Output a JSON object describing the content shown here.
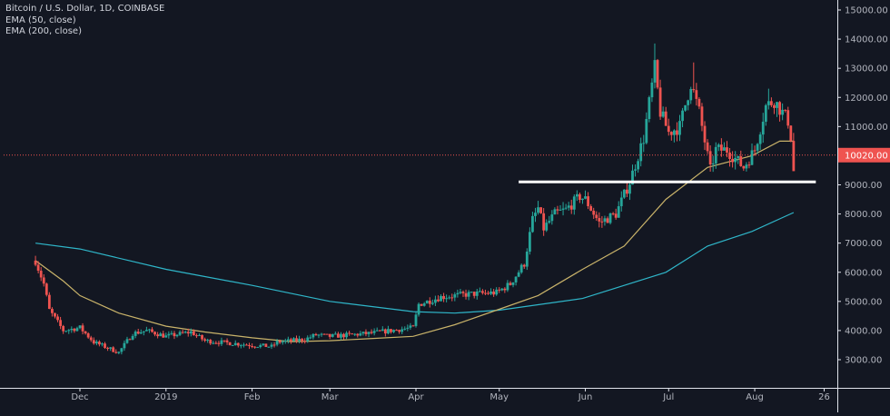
{
  "legend": {
    "title": "Bitcoin / U.S. Dollar, 1D, COINBASE",
    "ema50": "EMA (50, close)",
    "ema200": "EMA (200, close)"
  },
  "colors": {
    "background": "#131722",
    "up": "#26a69a",
    "down": "#ef5350",
    "ema50": "#c9b36a",
    "ema200": "#2fb6c9",
    "price_line": "#ef5350",
    "support_line": "#ffffff",
    "axis_text": "#b2b5be",
    "border": "#e0e3eb"
  },
  "chart_data": {
    "type": "candlestick",
    "title": "Bitcoin / U.S. Dollar, 1D, COINBASE",
    "xlabel": "",
    "ylabel": "",
    "ylim": [
      2300,
      15000
    ],
    "y_ticks": [
      "15000.00",
      "14000.00",
      "13000.00",
      "12000.00",
      "11000.00",
      "10000.00",
      "9000.00",
      "8000.00",
      "7000.00",
      "6000.00",
      "5000.00",
      "4000.00",
      "3000.00"
    ],
    "x_ticks": [
      "Dec",
      "2019",
      "Feb",
      "Mar",
      "Apr",
      "May",
      "Jun",
      "Jul",
      "Aug",
      "26"
    ],
    "current_price": "10020.00",
    "price_anchors": [
      [
        "2018-11-15",
        6400
      ],
      [
        "2018-11-18",
        5600
      ],
      [
        "2018-11-20",
        4700
      ],
      [
        "2018-11-25",
        4000
      ],
      [
        "2018-12-01",
        4100
      ],
      [
        "2018-12-06",
        3600
      ],
      [
        "2018-12-15",
        3250
      ],
      [
        "2018-12-20",
        3900
      ],
      [
        "2018-12-25",
        4000
      ],
      [
        "2019-01-01",
        3800
      ],
      [
        "2019-01-10",
        3950
      ],
      [
        "2019-01-15",
        3650
      ],
      [
        "2019-02-01",
        3500
      ],
      [
        "2019-02-08",
        3450
      ],
      [
        "2019-02-10",
        3600
      ],
      [
        "2019-02-20",
        3700
      ],
      [
        "2019-02-24",
        3850
      ],
      [
        "2019-03-01",
        3800
      ],
      [
        "2019-03-15",
        3900
      ],
      [
        "2019-03-31",
        4100
      ],
      [
        "2019-04-02",
        4900
      ],
      [
        "2019-04-10",
        5150
      ],
      [
        "2019-04-20",
        5250
      ],
      [
        "2019-04-30",
        5300
      ],
      [
        "2019-05-05",
        5600
      ],
      [
        "2019-05-10",
        6300
      ],
      [
        "2019-05-13",
        7800
      ],
      [
        "2019-05-15",
        8200
      ],
      [
        "2019-05-17",
        7500
      ],
      [
        "2019-05-21",
        8000
      ],
      [
        "2019-05-25",
        8150
      ],
      [
        "2019-05-30",
        8600
      ],
      [
        "2019-06-01",
        8500
      ],
      [
        "2019-06-06",
        7700
      ],
      [
        "2019-06-12",
        8000
      ],
      [
        "2019-06-17",
        9100
      ],
      [
        "2019-06-22",
        10600
      ],
      [
        "2019-06-26",
        13000
      ],
      [
        "2019-06-28",
        11500
      ],
      [
        "2019-07-01",
        10800
      ],
      [
        "2019-07-05",
        11000
      ],
      [
        "2019-07-09",
        12500
      ],
      [
        "2019-07-12",
        11500
      ],
      [
        "2019-07-16",
        9500
      ],
      [
        "2019-07-18",
        10200
      ],
      [
        "2019-07-22",
        10200
      ],
      [
        "2019-07-28",
        9600
      ],
      [
        "2019-08-01",
        10200
      ],
      [
        "2019-08-05",
        11700
      ],
      [
        "2019-08-08",
        11900
      ],
      [
        "2019-08-13",
        11200
      ],
      [
        "2019-08-15",
        10100
      ]
    ],
    "ema50_points": [
      [
        "2018-11-15",
        6400
      ],
      [
        "2018-11-25",
        5700
      ],
      [
        "2018-12-01",
        5200
      ],
      [
        "2018-12-15",
        4600
      ],
      [
        "2019-01-01",
        4150
      ],
      [
        "2019-01-15",
        3950
      ],
      [
        "2019-02-01",
        3750
      ],
      [
        "2019-02-15",
        3620
      ],
      [
        "2019-03-01",
        3650
      ],
      [
        "2019-03-15",
        3720
      ],
      [
        "2019-03-31",
        3800
      ],
      [
        "2019-04-15",
        4200
      ],
      [
        "2019-04-30",
        4700
      ],
      [
        "2019-05-15",
        5200
      ],
      [
        "2019-05-31",
        6100
      ],
      [
        "2019-06-15",
        6900
      ],
      [
        "2019-06-30",
        8500
      ],
      [
        "2019-07-15",
        9600
      ],
      [
        "2019-07-31",
        10000
      ],
      [
        "2019-08-10",
        10500
      ],
      [
        "2019-08-15",
        10500
      ]
    ],
    "ema200_points": [
      [
        "2018-11-15",
        7000
      ],
      [
        "2018-12-01",
        6800
      ],
      [
        "2019-01-01",
        6100
      ],
      [
        "2019-02-01",
        5550
      ],
      [
        "2019-03-01",
        5000
      ],
      [
        "2019-03-31",
        4650
      ],
      [
        "2019-04-15",
        4600
      ],
      [
        "2019-05-01",
        4700
      ],
      [
        "2019-05-31",
        5100
      ],
      [
        "2019-06-30",
        6000
      ],
      [
        "2019-07-15",
        6900
      ],
      [
        "2019-07-31",
        7400
      ],
      [
        "2019-08-15",
        8050
      ]
    ],
    "support_level": 9100,
    "support_range": [
      "2019-05-08",
      "2019-08-23"
    ]
  }
}
